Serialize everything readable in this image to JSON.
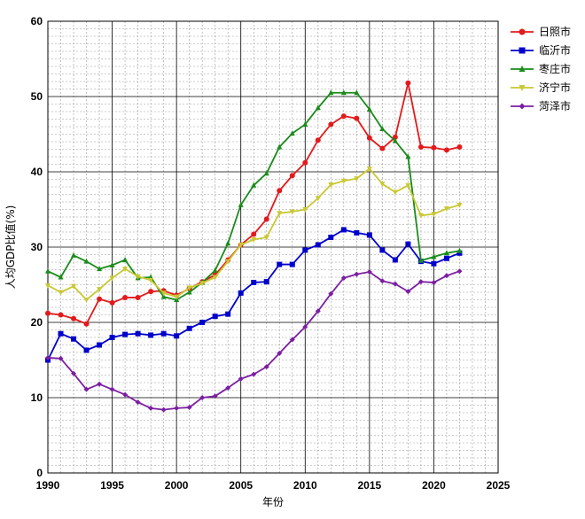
{
  "chart_data": {
    "type": "line",
    "title": "",
    "xlabel": "年份",
    "ylabel": "人均GDP比值(%)",
    "xlim": [
      1990,
      2025
    ],
    "ylim": [
      0,
      60
    ],
    "x_ticks": [
      1990,
      1995,
      2000,
      2005,
      2010,
      2015,
      2020,
      2025
    ],
    "y_ticks": [
      0,
      10,
      20,
      30,
      40,
      50,
      60
    ],
    "grid": "major solid, minor dashed",
    "legend_position": "top-right",
    "x": [
      1990,
      1991,
      1992,
      1993,
      1994,
      1995,
      1996,
      1997,
      1998,
      1999,
      2000,
      2001,
      2002,
      2003,
      2004,
      2005,
      2006,
      2007,
      2008,
      2009,
      2010,
      2011,
      2012,
      2013,
      2014,
      2015,
      2016,
      2017,
      2018,
      2019,
      2020,
      2021,
      2022
    ],
    "series": [
      {
        "name": "日照市",
        "color": "#e31a1c",
        "marker": "circle",
        "values": [
          21.2,
          21.0,
          20.5,
          19.8,
          23.1,
          22.6,
          23.3,
          23.3,
          24.1,
          24.2,
          23.6,
          24.5,
          25.4,
          26.3,
          28.3,
          30.3,
          31.7,
          33.7,
          37.5,
          39.5,
          41.2,
          44.2,
          46.3,
          47.4,
          47.1,
          44.5,
          43.1,
          44.6,
          51.8,
          43.3,
          43.2,
          42.9,
          43.3
        ]
      },
      {
        "name": "临沂市",
        "color": "#0000cc",
        "marker": "square",
        "values": [
          15.0,
          18.5,
          17.8,
          16.3,
          17.0,
          18.0,
          18.4,
          18.5,
          18.3,
          18.5,
          18.2,
          19.2,
          20.0,
          20.8,
          21.1,
          23.9,
          25.3,
          25.4,
          27.7,
          27.7,
          29.6,
          30.3,
          31.3,
          32.3,
          31.9,
          31.6,
          29.6,
          28.3,
          30.4,
          28.1,
          27.8,
          28.5,
          29.2
        ]
      },
      {
        "name": "枣庄市",
        "color": "#1a8c1a",
        "marker": "triangle",
        "values": [
          26.8,
          26.0,
          28.9,
          28.1,
          27.1,
          27.6,
          28.3,
          25.9,
          26.0,
          23.4,
          23.0,
          24.0,
          25.3,
          26.9,
          30.5,
          35.6,
          38.2,
          39.8,
          43.3,
          45.1,
          46.3,
          48.5,
          50.5,
          50.5,
          50.5,
          48.3,
          45.7,
          44.1,
          42.0,
          28.2,
          28.7,
          29.2,
          29.5
        ]
      },
      {
        "name": "济宁市",
        "color": "#c8c832",
        "marker": "triangle-down",
        "values": [
          24.9,
          24.0,
          24.8,
          23.0,
          24.4,
          25.9,
          27.1,
          26.1,
          25.6,
          23.9,
          23.4,
          24.6,
          25.2,
          26.0,
          28.1,
          30.3,
          31.0,
          31.3,
          34.5,
          34.7,
          35.0,
          36.5,
          38.3,
          38.8,
          39.1,
          40.4,
          38.4,
          37.3,
          38.2,
          34.2,
          34.4,
          35.1,
          35.6
        ]
      },
      {
        "name": "菏泽市",
        "color": "#7b1fa2",
        "marker": "diamond",
        "values": [
          15.3,
          15.2,
          13.2,
          11.1,
          11.8,
          11.1,
          10.4,
          9.4,
          8.6,
          8.4,
          8.6,
          8.7,
          10.0,
          10.2,
          11.3,
          12.5,
          13.1,
          14.1,
          15.9,
          17.7,
          19.4,
          21.5,
          23.8,
          25.9,
          26.4,
          26.7,
          25.5,
          25.1,
          24.1,
          25.4,
          25.3,
          26.2,
          26.8
        ]
      }
    ]
  }
}
